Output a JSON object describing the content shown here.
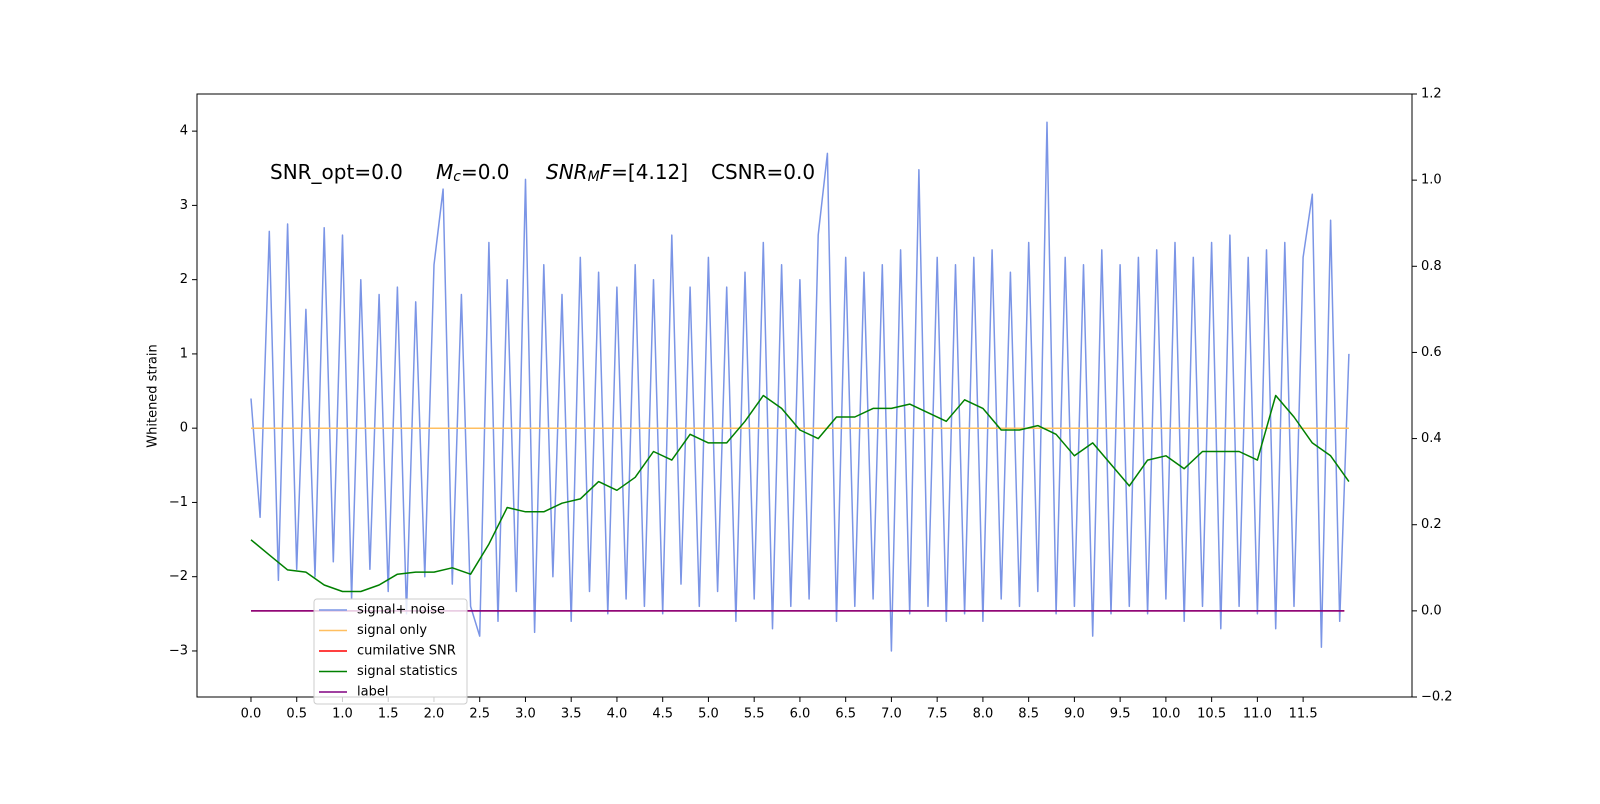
{
  "chart_data": {
    "type": "line",
    "ylabel": "Whitened strain",
    "annotations": [
      {
        "parts": [
          {
            "text": "SNR_opt=0.0",
            "style": "normal"
          }
        ]
      },
      {
        "parts": [
          {
            "text": "M",
            "style": "italic"
          },
          {
            "text": "c",
            "style": "italic-sub"
          },
          {
            "text": "=0.0",
            "style": "normal"
          }
        ]
      },
      {
        "parts": [
          {
            "text": "SNR",
            "style": "italic"
          },
          {
            "text": "M",
            "style": "italic-sub"
          },
          {
            "text": "F",
            "style": "italic"
          },
          {
            "text": "=[4.12]",
            "style": "normal"
          }
        ]
      },
      {
        "parts": [
          {
            "text": "CSNR=0.0",
            "style": "normal"
          }
        ]
      }
    ],
    "xlim": [
      -0.59,
      12.69
    ],
    "ylim": [
      -3.62,
      4.5
    ],
    "y2lim": [
      -0.2,
      1.2
    ],
    "xticks": [
      {
        "value": 0,
        "label": "0.0"
      },
      0.5,
      {
        "value": 1,
        "label": "1.0"
      },
      1.5,
      {
        "value": 2,
        "label": "2.0"
      },
      2.5,
      {
        "value": 3,
        "label": "3.0"
      },
      3.5,
      {
        "value": 4,
        "label": "4.0"
      },
      4.5,
      {
        "value": 5,
        "label": "5.0"
      },
      5.5,
      {
        "value": 6,
        "label": "6.0"
      },
      6.5,
      {
        "value": 7,
        "label": "7.0"
      },
      7.5,
      {
        "value": 8,
        "label": "8.0"
      },
      8.5,
      {
        "value": 9,
        "label": "9.0"
      },
      9.5,
      {
        "value": 10,
        "label": "10.0"
      },
      10.5,
      {
        "value": 11,
        "label": "11.0"
      },
      11.5
    ],
    "yticks": [
      {
        "value": -3,
        "label": "−3"
      },
      {
        "value": -2,
        "label": "−2"
      },
      {
        "value": -1,
        "label": "−1"
      },
      0,
      1,
      2,
      3,
      4
    ],
    "y2ticks": [
      {
        "value": -0.2,
        "label": "−0.2"
      },
      {
        "value": 0,
        "label": "0.0"
      },
      0.2,
      0.4,
      0.6,
      0.8,
      {
        "value": 1,
        "label": "1.0"
      },
      1.2
    ],
    "legend": "lower left",
    "series": [
      {
        "name": "signal+ noise",
        "color": "#7b95e6",
        "axis": "y",
        "x": [
          0,
          0.1,
          0.2,
          0.3,
          0.4,
          0.5,
          0.6,
          0.7,
          0.8,
          0.9,
          1,
          1.1,
          1.2,
          1.3,
          1.4,
          1.5,
          1.6,
          1.7,
          1.8,
          1.9,
          2,
          2.1,
          2.2,
          2.3,
          2.4,
          2.5,
          2.6,
          2.7,
          2.8,
          2.9,
          3,
          3.1,
          3.2,
          3.3,
          3.4,
          3.5,
          3.6,
          3.7,
          3.8,
          3.9,
          4,
          4.1,
          4.2,
          4.3,
          4.4,
          4.5,
          4.6,
          4.7,
          4.8,
          4.9,
          5,
          5.1,
          5.2,
          5.3,
          5.4,
          5.5,
          5.6,
          5.7,
          5.8,
          5.9,
          6,
          6.1,
          6.2,
          6.3,
          6.4,
          6.5,
          6.6,
          6.7,
          6.8,
          6.9,
          7,
          7.1,
          7.2,
          7.3,
          7.4,
          7.5,
          7.6,
          7.7,
          7.8,
          7.9,
          8,
          8.1,
          8.2,
          8.3,
          8.4,
          8.5,
          8.6,
          8.7,
          8.8,
          8.9,
          9,
          9.1,
          9.2,
          9.3,
          9.4,
          9.5,
          9.6,
          9.7,
          9.8,
          9.9,
          10,
          10.1,
          10.2,
          10.3,
          10.4,
          10.5,
          10.6,
          10.7,
          10.8,
          10.9,
          11,
          11.1,
          11.2,
          11.3,
          11.4,
          11.5,
          11.6,
          11.7,
          11.8,
          11.9,
          12
        ],
        "values": [
          0.4,
          -1.2,
          2.65,
          -2.05,
          2.75,
          -1.9,
          1.6,
          -2.0,
          2.7,
          -1.8,
          2.6,
          -2.3,
          2.0,
          -1.9,
          1.8,
          -2.2,
          1.9,
          -2.5,
          1.7,
          -2.0,
          2.2,
          3.22,
          -2.1,
          1.8,
          -2.4,
          -2.8,
          2.5,
          -2.6,
          2.0,
          -2.2,
          3.35,
          -2.75,
          2.2,
          -2.0,
          1.8,
          -2.6,
          2.3,
          -2.2,
          2.1,
          -2.5,
          1.9,
          -2.3,
          2.2,
          -2.4,
          2.0,
          -2.5,
          2.6,
          -2.1,
          1.9,
          -2.4,
          2.3,
          -2.2,
          1.9,
          -2.6,
          2.1,
          -2.3,
          2.5,
          -2.7,
          2.2,
          -2.4,
          2.0,
          -2.3,
          2.6,
          3.7,
          -2.6,
          2.3,
          -2.4,
          2.1,
          -2.3,
          2.2,
          -3.0,
          2.4,
          -2.5,
          3.48,
          -2.4,
          2.3,
          -2.6,
          2.2,
          -2.5,
          2.3,
          -2.6,
          2.4,
          -2.3,
          2.1,
          -2.4,
          2.5,
          -2.2,
          4.12,
          -2.5,
          2.3,
          -2.4,
          2.2,
          -2.8,
          2.4,
          -2.5,
          2.2,
          -2.4,
          2.3,
          -2.5,
          2.4,
          -2.3,
          2.5,
          -2.6,
          2.3,
          -2.4,
          2.5,
          -2.7,
          2.6,
          -2.4,
          2.3,
          -2.5,
          2.4,
          -2.7,
          2.5,
          -2.4,
          2.3,
          3.15,
          -2.95,
          2.8,
          -2.6,
          1.0
        ]
      },
      {
        "name": "signal only",
        "color": "#ffbf60",
        "axis": "y",
        "x": [
          0,
          12
        ],
        "values": [
          0,
          0
        ]
      },
      {
        "name": "cumilative SNR",
        "color": "#ff0000",
        "axis": "y2",
        "x": [
          0,
          11.95
        ],
        "values": [
          0,
          0
        ]
      },
      {
        "name": "signal statistics",
        "color": "#008000",
        "axis": "y2",
        "x": [
          0,
          0.2,
          0.4,
          0.6,
          0.8,
          1,
          1.2,
          1.4,
          1.6,
          1.8,
          2,
          2.2,
          2.4,
          2.6,
          2.8,
          3,
          3.2,
          3.4,
          3.6,
          3.8,
          4,
          4.2,
          4.4,
          4.6,
          4.8,
          5,
          5.2,
          5.4,
          5.6,
          5.8,
          6,
          6.2,
          6.4,
          6.6,
          6.8,
          7,
          7.2,
          7.4,
          7.6,
          7.8,
          8,
          8.2,
          8.4,
          8.6,
          8.8,
          9,
          9.2,
          9.4,
          9.6,
          9.8,
          10,
          10.2,
          10.4,
          10.6,
          10.8,
          11,
          11.2,
          11.4,
          11.6,
          11.8,
          12
        ],
        "values": [
          0.165,
          0.13,
          0.095,
          0.09,
          0.06,
          0.045,
          0.045,
          0.06,
          0.085,
          0.09,
          0.09,
          0.1,
          0.085,
          0.155,
          0.24,
          0.23,
          0.23,
          0.25,
          0.26,
          0.3,
          0.28,
          0.31,
          0.37,
          0.35,
          0.41,
          0.39,
          0.39,
          0.44,
          0.5,
          0.47,
          0.42,
          0.4,
          0.45,
          0.45,
          0.47,
          0.47,
          0.48,
          0.46,
          0.44,
          0.49,
          0.47,
          0.42,
          0.42,
          0.43,
          0.41,
          0.36,
          0.39,
          0.34,
          0.29,
          0.35,
          0.36,
          0.33,
          0.37,
          0.37,
          0.37,
          0.35,
          0.5,
          0.45,
          0.39,
          0.36,
          0.3
        ]
      },
      {
        "name": "label",
        "color": "#800080",
        "axis": "y2",
        "x": [
          0,
          11.95
        ],
        "values": [
          0,
          0
        ]
      }
    ]
  }
}
